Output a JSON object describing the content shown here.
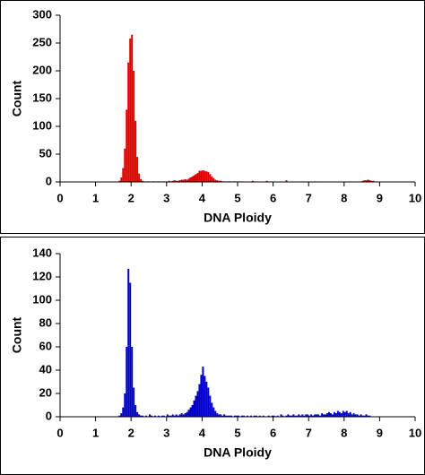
{
  "chart_data": [
    {
      "type": "histogram",
      "xlabel": "DNA Ploidy",
      "ylabel": "Count",
      "color": "#e00000",
      "grid": false,
      "xlim": [
        0,
        10
      ],
      "xticks": [
        0,
        1,
        2,
        3,
        4,
        5,
        6,
        7,
        8,
        9,
        10
      ],
      "ylim": [
        0,
        300
      ],
      "yticks": [
        0,
        50,
        100,
        150,
        200,
        250,
        300
      ],
      "bins": [
        1.6,
        1.65,
        1.7,
        1.75,
        1.8,
        1.85,
        1.9,
        1.95,
        2,
        2.05,
        2.1,
        2.15,
        2.2,
        2.25,
        2.3,
        2.35,
        2.4,
        2.45,
        2.5,
        2.55,
        2.6,
        2.65,
        2.7,
        2.75,
        2.8,
        2.85,
        2.9,
        2.95,
        3,
        3.05,
        3.1,
        3.15,
        3.2,
        3.25,
        3.3,
        3.35,
        3.4,
        3.45,
        3.5,
        3.55,
        3.6,
        3.65,
        3.7,
        3.75,
        3.8,
        3.85,
        3.9,
        3.95,
        4,
        4.05,
        4.1,
        4.15,
        4.2,
        4.25,
        4.3,
        4.35,
        4.4,
        4.45,
        4.5,
        4.55,
        4.6,
        4.65,
        4.7,
        4.75,
        4.8,
        4.85,
        4.9,
        4.95,
        5,
        5.05,
        5.1,
        5.15,
        5.2,
        5.25,
        5.3,
        5.35,
        5.4,
        5.45,
        5.5,
        5.55,
        5.6,
        5.65,
        5.7,
        5.75,
        5.8,
        5.85,
        5.9,
        5.95,
        6,
        6.05,
        6.1,
        6.15,
        6.2,
        6.25,
        6.3,
        6.35,
        6.4,
        6.45,
        6.5,
        6.55,
        6.6,
        6.65,
        6.7,
        6.75,
        6.8,
        6.85,
        6.9,
        6.95,
        7,
        7.05,
        7.1,
        7.15,
        7.2,
        7.25,
        7.3,
        7.35,
        7.4,
        7.45,
        7.5,
        7.55,
        7.6,
        7.65,
        7.7,
        7.75,
        7.8,
        7.85,
        7.9,
        7.95,
        8,
        8.05,
        8.1,
        8.15,
        8.2,
        8.25,
        8.3,
        8.35,
        8.4,
        8.45,
        8.5,
        8.55,
        8.6,
        8.65,
        8.7,
        8.75,
        8.8,
        8.85,
        8.9,
        8.95,
        9
      ],
      "values": [
        0,
        2,
        8,
        25,
        60,
        130,
        215,
        258,
        265,
        200,
        110,
        45,
        15,
        5,
        2,
        1,
        0,
        1,
        0,
        0,
        1,
        0,
        0,
        1,
        0,
        0,
        1,
        0,
        1,
        2,
        1,
        2,
        3,
        2,
        2,
        3,
        4,
        4,
        5,
        4,
        6,
        8,
        10,
        12,
        14,
        16,
        20,
        20,
        21,
        20,
        19,
        18,
        14,
        10,
        7,
        4,
        3,
        2,
        2,
        1,
        1,
        0,
        0,
        1,
        0,
        0,
        1,
        0,
        0,
        1,
        0,
        0,
        0,
        0,
        0,
        0,
        2,
        0,
        0,
        0,
        0,
        0,
        0,
        0,
        2,
        0,
        0,
        0,
        0,
        0,
        0,
        0,
        0,
        0,
        0,
        3,
        0,
        0,
        0,
        0,
        0,
        0,
        0,
        0,
        0,
        0,
        0,
        0,
        0,
        0,
        0,
        1,
        0,
        0,
        0,
        0,
        0,
        0,
        0,
        0,
        0,
        0,
        0,
        0,
        0,
        0,
        0,
        0,
        0,
        0,
        0,
        0,
        0,
        0,
        0,
        0,
        0,
        0,
        2,
        3,
        3,
        4,
        3,
        2,
        2,
        0,
        0,
        0
      ]
    },
    {
      "type": "histogram",
      "xlabel": "DNA Ploidy",
      "ylabel": "Count",
      "color": "#0000c8",
      "grid": false,
      "xlim": [
        0,
        10
      ],
      "xticks": [
        0,
        1,
        2,
        3,
        4,
        5,
        6,
        7,
        8,
        9,
        10
      ],
      "ylim": [
        0,
        140
      ],
      "yticks": [
        0,
        20,
        40,
        60,
        80,
        100,
        120,
        140
      ],
      "bins": [
        1.6,
        1.65,
        1.7,
        1.75,
        1.8,
        1.85,
        1.9,
        1.95,
        2,
        2.05,
        2.1,
        2.15,
        2.2,
        2.25,
        2.3,
        2.35,
        2.4,
        2.45,
        2.5,
        2.55,
        2.6,
        2.65,
        2.7,
        2.75,
        2.8,
        2.85,
        2.9,
        2.95,
        3,
        3.05,
        3.1,
        3.15,
        3.2,
        3.25,
        3.3,
        3.35,
        3.4,
        3.45,
        3.5,
        3.55,
        3.6,
        3.65,
        3.7,
        3.75,
        3.8,
        3.85,
        3.9,
        3.95,
        4,
        4.05,
        4.1,
        4.15,
        4.2,
        4.25,
        4.3,
        4.35,
        4.4,
        4.45,
        4.5,
        4.55,
        4.6,
        4.65,
        4.7,
        4.75,
        4.8,
        4.85,
        4.9,
        4.95,
        5,
        5.05,
        5.1,
        5.15,
        5.2,
        5.25,
        5.3,
        5.35,
        5.4,
        5.45,
        5.5,
        5.55,
        5.6,
        5.65,
        5.7,
        5.75,
        5.8,
        5.85,
        5.9,
        5.95,
        6,
        6.05,
        6.1,
        6.15,
        6.2,
        6.25,
        6.3,
        6.35,
        6.4,
        6.45,
        6.5,
        6.55,
        6.6,
        6.65,
        6.7,
        6.75,
        6.8,
        6.85,
        6.9,
        6.95,
        7,
        7.05,
        7.1,
        7.15,
        7.2,
        7.25,
        7.3,
        7.35,
        7.4,
        7.45,
        7.5,
        7.55,
        7.6,
        7.65,
        7.7,
        7.75,
        7.8,
        7.85,
        7.9,
        7.95,
        8,
        8.05,
        8.1,
        8.15,
        8.2,
        8.25,
        8.3,
        8.35,
        8.4,
        8.45,
        8.5,
        8.55,
        8.6,
        8.65,
        8.7,
        8.75,
        8.8,
        8.85,
        8.9,
        8.95,
        9
      ],
      "values": [
        0,
        1,
        3,
        8,
        20,
        60,
        127,
        115,
        60,
        25,
        10,
        4,
        2,
        1,
        1,
        0,
        1,
        0,
        2,
        1,
        0,
        1,
        0,
        1,
        0,
        1,
        1,
        0,
        2,
        1,
        1,
        2,
        1,
        2,
        1,
        2,
        3,
        2,
        3,
        4,
        6,
        8,
        10,
        14,
        18,
        22,
        28,
        36,
        43,
        35,
        30,
        25,
        18,
        12,
        8,
        5,
        3,
        2,
        2,
        1,
        2,
        1,
        1,
        1,
        1,
        0,
        1,
        1,
        1,
        0,
        1,
        1,
        0,
        1,
        0,
        1,
        0,
        1,
        1,
        0,
        1,
        0,
        1,
        0,
        0,
        1,
        0,
        1,
        1,
        0,
        1,
        0,
        2,
        1,
        0,
        1,
        2,
        1,
        1,
        2,
        1,
        1,
        2,
        1,
        2,
        1,
        2,
        2,
        1,
        2,
        1,
        2,
        2,
        2,
        1,
        3,
        2,
        2,
        3,
        4,
        3,
        2,
        4,
        3,
        5,
        4,
        3,
        5,
        4,
        5,
        3,
        4,
        2,
        3,
        2,
        2,
        1,
        2,
        1,
        1,
        2,
        1,
        1,
        0,
        0,
        0,
        0,
        0
      ]
    }
  ]
}
